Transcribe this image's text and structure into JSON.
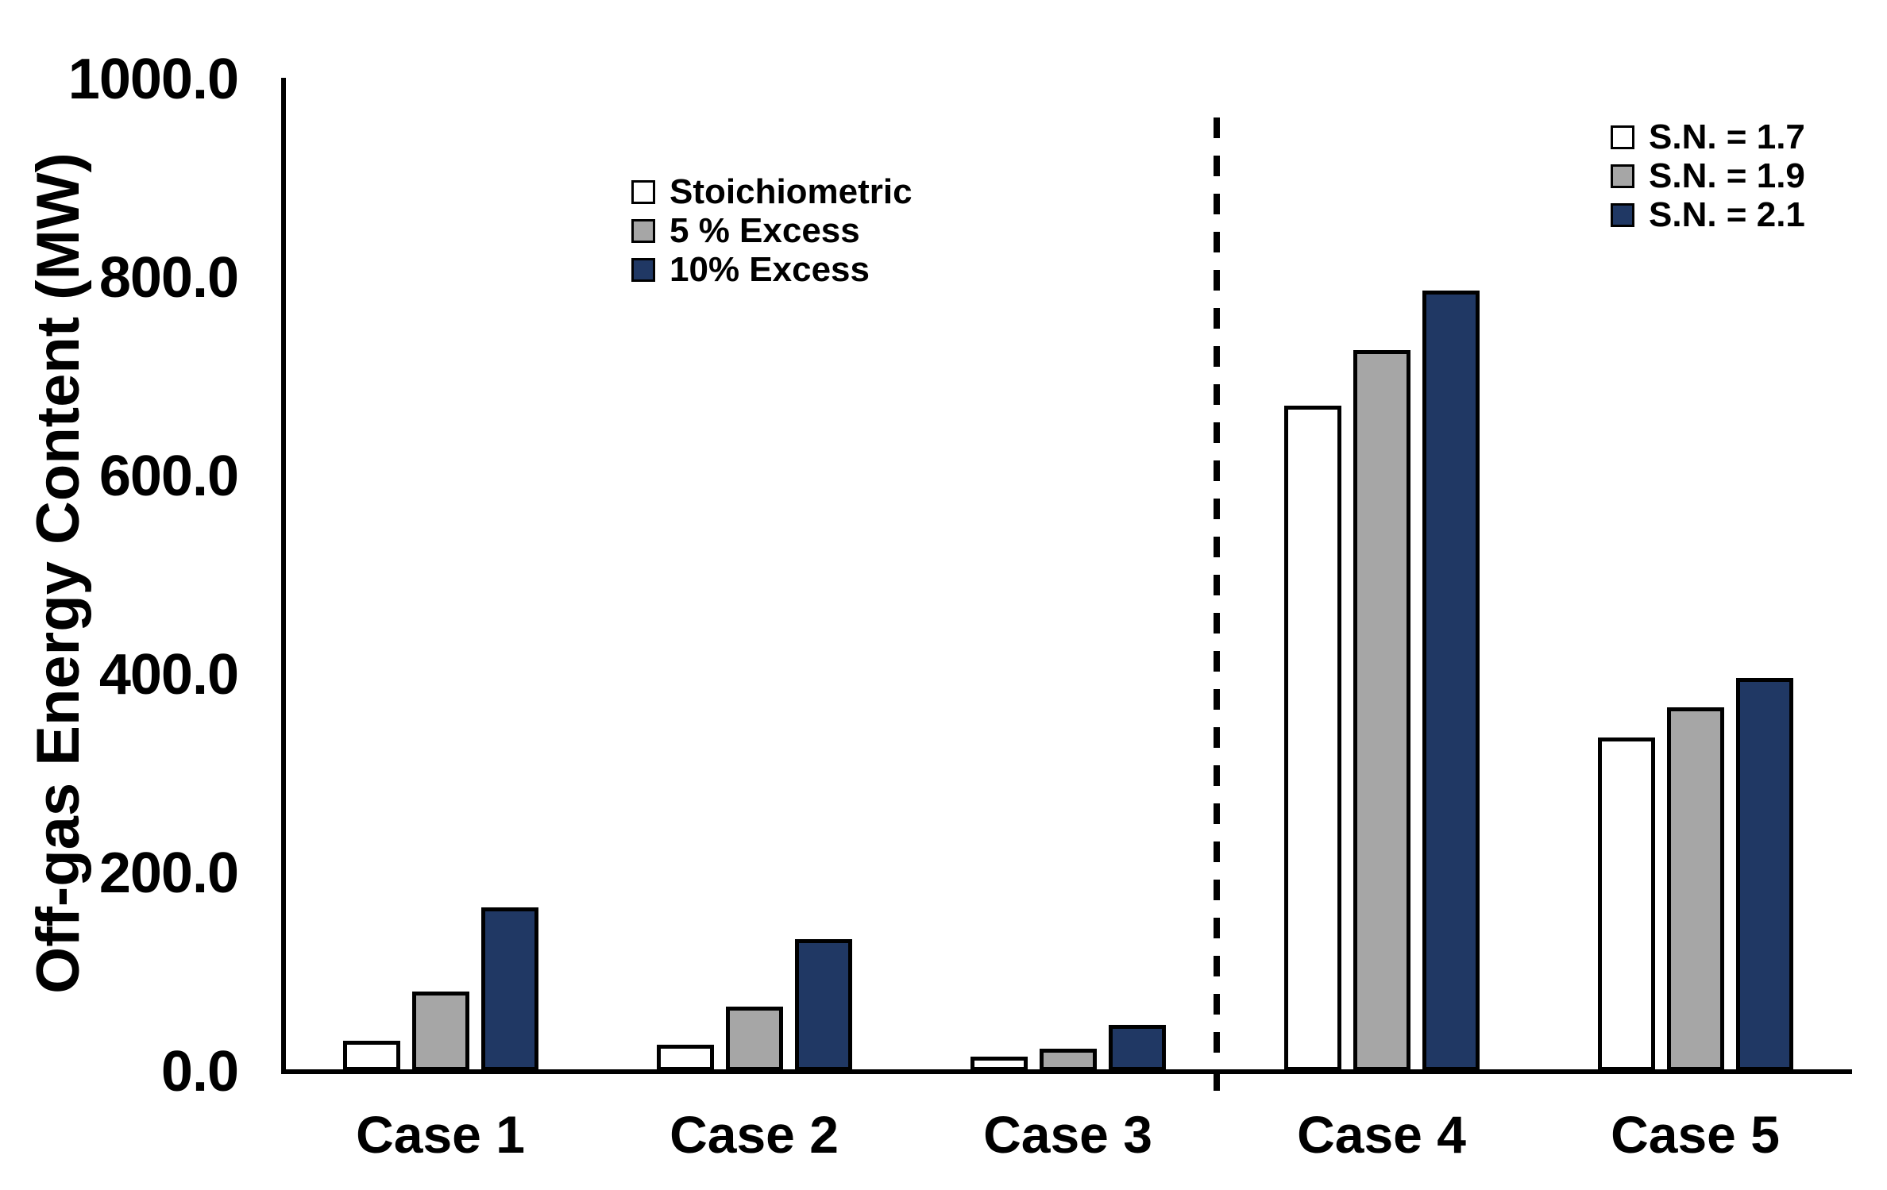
{
  "chart_data": {
    "type": "bar",
    "title": "",
    "xlabel": "",
    "ylabel": "Off-gas Energy Content (MW)",
    "ylim": [
      0,
      1000
    ],
    "ytick_labels": [
      "0.0",
      "200.0",
      "400.0",
      "600.0",
      "800.0",
      "1000.0"
    ],
    "ytick_values": [
      0,
      200,
      400,
      600,
      800,
      1000
    ],
    "categories": [
      "Case 1",
      "Case 2",
      "Case 3",
      "Case 4",
      "Case 5"
    ],
    "series": [
      {
        "name": "Stoichiometric",
        "color": "#FFFFFF",
        "values": [
          30,
          26,
          14,
          670,
          336
        ]
      },
      {
        "name": "5 % Excess",
        "color": "#A6A6A6",
        "values": [
          80,
          65,
          22,
          726,
          366
        ]
      },
      {
        "name": "10% Excess",
        "color": "#203864",
        "values": [
          165,
          133,
          46,
          786,
          396
        ]
      }
    ],
    "legend_left": {
      "items": [
        {
          "label": "Stoichiometric",
          "color": "#FFFFFF"
        },
        {
          "label": "5 % Excess",
          "color": "#A6A6A6"
        },
        {
          "label": "10% Excess",
          "color": "#203864"
        }
      ]
    },
    "legend_right": {
      "items": [
        {
          "label": "S.N. = 1.7",
          "color": "#FFFFFF"
        },
        {
          "label": "S.N. = 1.9",
          "color": "#A6A6A6"
        },
        {
          "label": "S.N. = 2.1",
          "color": "#203864"
        }
      ]
    },
    "divider_between": [
      "Case 3",
      "Case 4"
    ],
    "grid": false,
    "legend_position": [
      "upper-left-of-plot",
      "upper-right"
    ],
    "bar_edge_color": "#000000",
    "axis_color": "#000000"
  }
}
